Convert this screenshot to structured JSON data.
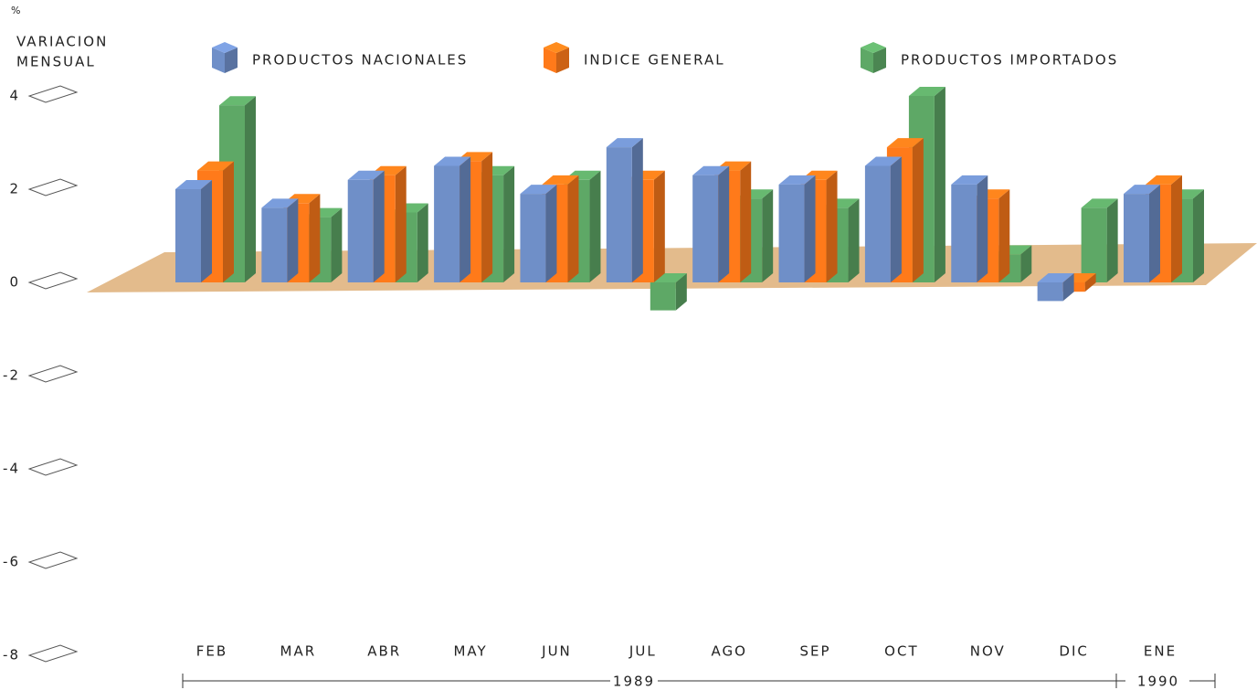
{
  "chart_data": {
    "type": "bar3d",
    "y_label": [
      "%",
      "VARIACION",
      "MENSUAL"
    ],
    "categories": [
      "FEB",
      "MAR",
      "ABR",
      "MAY",
      "JUN",
      "JUL",
      "AGO",
      "SEP",
      "OCT",
      "NOV",
      "DIC",
      "ENE"
    ],
    "series": [
      {
        "name": "PRODUCTOS NACIONALES",
        "color": "#6f8fc8",
        "values": [
          2.0,
          1.6,
          2.2,
          2.5,
          1.9,
          2.9,
          2.3,
          2.1,
          2.5,
          2.1,
          -0.4,
          1.9
        ]
      },
      {
        "name": "INDICE GENERAL",
        "color": "#ff7a1a",
        "values": [
          2.4,
          1.7,
          2.3,
          2.6,
          2.1,
          2.2,
          2.4,
          2.2,
          2.9,
          1.8,
          -0.2,
          2.1
        ]
      },
      {
        "name": "PRODUCTOS IMPORTADOS",
        "color": "#5ea866",
        "values": [
          3.8,
          1.4,
          1.5,
          2.3,
          2.2,
          -0.6,
          1.8,
          1.6,
          4.0,
          0.6,
          1.6,
          1.8
        ]
      }
    ],
    "periods": [
      "1989",
      "1990"
    ],
    "ylim": [
      -8,
      4
    ],
    "yticks": [
      4,
      2,
      0,
      -2,
      -4,
      -6,
      -8
    ]
  }
}
